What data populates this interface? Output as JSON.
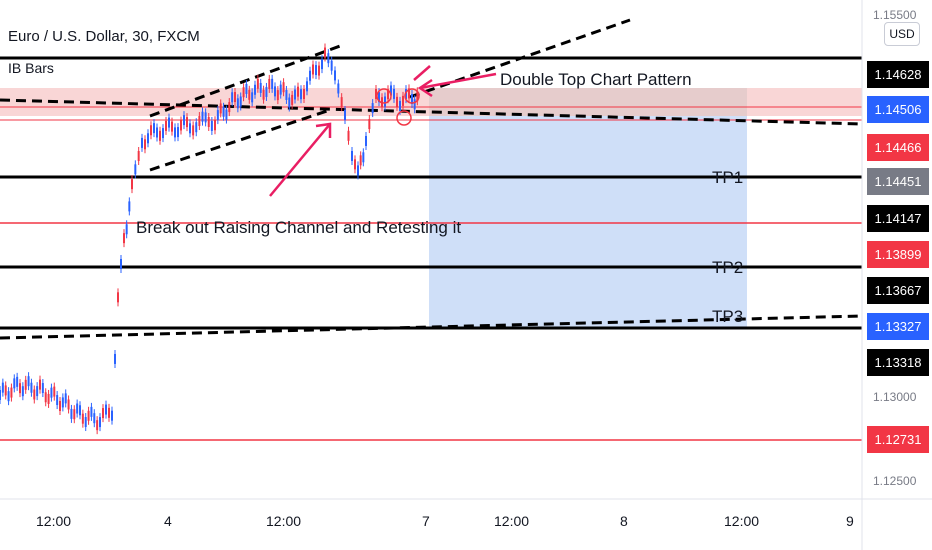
{
  "header": {
    "symbol_title": "Euro / U.S. Dollar, 30, FXCM",
    "indicator": "IB Bars"
  },
  "annotations": {
    "double_top": "Double Top Chart Pattern",
    "breakout": "Break out Raising Channel and Retesting it",
    "tp1": "TP1",
    "tp2": "TP2",
    "tp3": "TP3"
  },
  "currency_button": "USD",
  "price_tags": [
    {
      "label": "1.14628",
      "bg": "#000000"
    },
    {
      "label": "1.14506",
      "bg": "#2962ff"
    },
    {
      "label": "1.14466",
      "bg": "#f23645"
    },
    {
      "label": "1.14451",
      "bg": "#787b86"
    },
    {
      "label": "1.14147",
      "bg": "#000000"
    },
    {
      "label": "1.13899",
      "bg": "#f23645"
    },
    {
      "label": "1.13667",
      "bg": "#000000"
    },
    {
      "label": "1.13327",
      "bg": "#2962ff"
    },
    {
      "label": "1.13318",
      "bg": "#000000"
    },
    {
      "label": "1.12731",
      "bg": "#f23645"
    }
  ],
  "price_axis_labels": [
    "1.15500",
    "1.13000",
    "1.12500"
  ],
  "time_axis_labels": [
    "12:00",
    "4",
    "12:00",
    "7",
    "12:00",
    "8",
    "12:00",
    "9"
  ],
  "colors": {
    "up_candle": "#2962ff",
    "down_candle": "#f23645",
    "level_line": "#000000",
    "red_line": "#f23645",
    "target_zone": "#c9dafb",
    "stop_zone": "#f7c8c8",
    "arrow": "#e91e63"
  }
}
